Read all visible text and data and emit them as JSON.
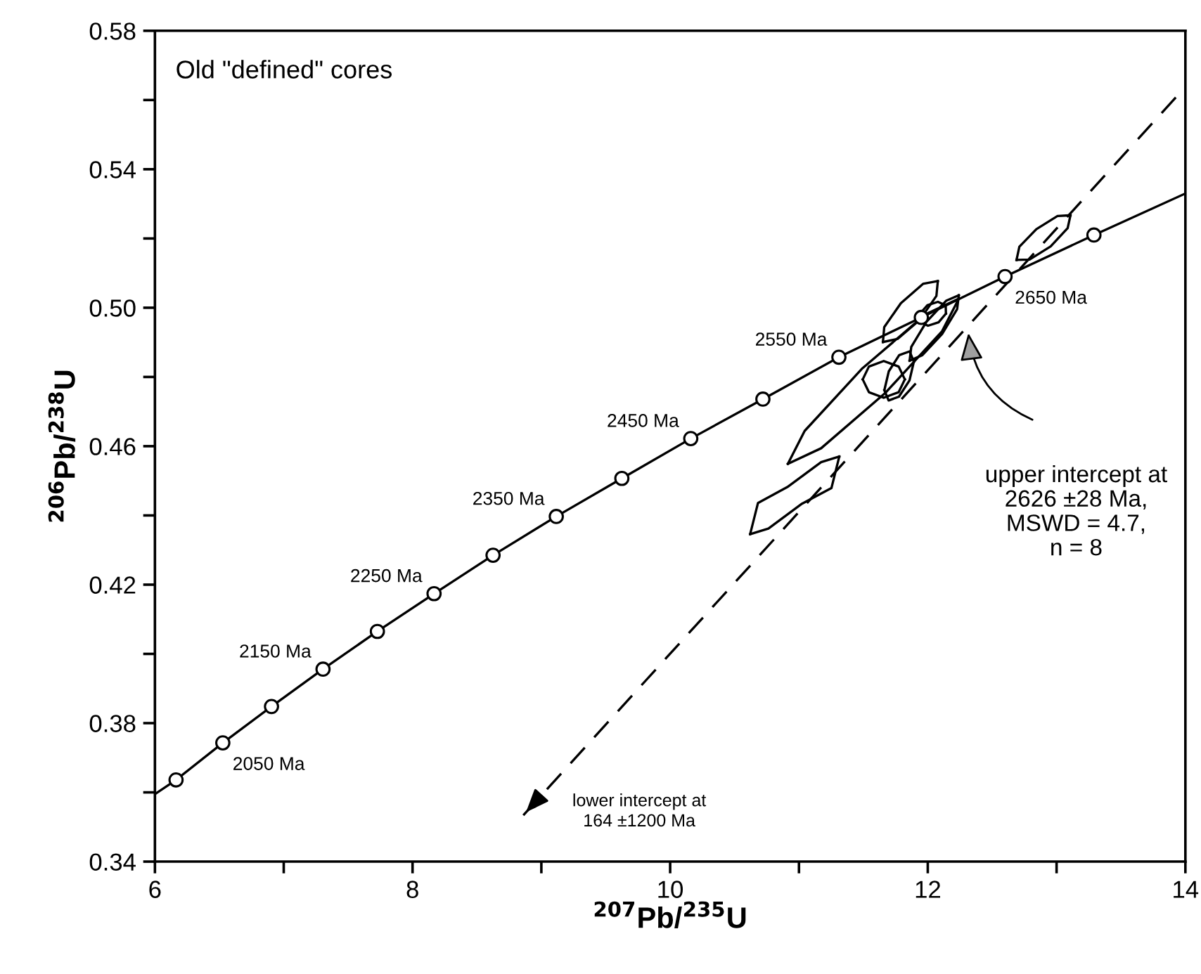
{
  "chart_data": {
    "type": "line",
    "title": "Old \"defined\" cores",
    "xlabel": "$^{207}$Pb/$^{235}$U",
    "ylabel": "$^{206}$Pb/$^{238}$U",
    "xlim": [
      6,
      14
    ],
    "ylim": [
      0.34,
      0.58
    ],
    "xticks": [
      6,
      {
        "value": 7,
        "label": null
      },
      8,
      {
        "value": 9,
        "label": null
      },
      10,
      {
        "value": 11,
        "label": null
      },
      12,
      {
        "value": 13,
        "label": null
      },
      14
    ],
    "yticks": [
      0.34,
      {
        "value": 0.36,
        "label": null
      },
      0.38,
      {
        "value": 0.4,
        "label": null
      },
      0.42,
      {
        "value": 0.44,
        "label": null
      },
      0.46,
      {
        "value": 0.48,
        "label": null
      },
      {
        "value": 0.5,
        "label": "0.50"
      },
      {
        "value": 0.52,
        "label": null
      },
      0.54,
      {
        "value": 0.56,
        "label": null
      },
      0.58
    ],
    "grid": false,
    "series": [
      {
        "color": "#000000",
        "line_style": "solid",
        "x": [
          6,
          6.164,
          6.527,
          6.905,
          7.305,
          7.727,
          8.167,
          8.625,
          9.116,
          9.625,
          10.16,
          10.72,
          11.31,
          11.95,
          12.6,
          13.29,
          14
        ],
        "values": [
          0.3595,
          0.3636,
          0.3743,
          0.3848,
          0.3956,
          0.4065,
          0.4174,
          0.4285,
          0.4397,
          0.4507,
          0.4622,
          0.4736,
          0.4857,
          0.4972,
          0.509,
          0.521,
          0.533
        ]
      },
      {
        "type": "scatter",
        "color": "#000000",
        "marker": "circle",
        "x": [
          6.164,
          6.527,
          6.905,
          7.305,
          7.727,
          8.167,
          8.625,
          9.116,
          9.625,
          10.16,
          10.72,
          11.31,
          11.95,
          12.6,
          13.29
        ],
        "values": [
          0.3636,
          0.3743,
          0.3848,
          0.3956,
          0.4065,
          0.4174,
          0.4285,
          0.4397,
          0.4507,
          0.4622,
          0.4736,
          0.4857,
          0.4972,
          0.509,
          0.521
        ]
      },
      {
        "color": "#000000",
        "line_style": "dashed",
        "x": [
          8.86,
          14
        ],
        "values": [
          0.3534,
          0.5638
        ]
      },
      {
        "color": "#000000",
        "line_style": "solid",
        "x": [
          12.689,
          12.711,
          12.843,
          13.007,
          13.108
        ],
        "values": [
          0.5138,
          0.5176,
          0.5227,
          0.5265,
          0.5267
        ]
      },
      {
        "color": "#000000",
        "line_style": "solid",
        "x": [
          12.689,
          12.79,
          12.954,
          13.086,
          13.108
        ],
        "values": [
          0.5138,
          0.5139,
          0.5177,
          0.523,
          0.5267
        ]
      },
      {
        "color": "#000000",
        "line_style": "solid",
        "x": [
          10.914,
          11.044,
          11.487,
          11.983,
          12.241
        ],
        "values": [
          0.4549,
          0.4644,
          0.4823,
          0.4981,
          0.5026
        ]
      },
      {
        "color": "#000000",
        "line_style": "solid",
        "x": [
          10.914,
          11.172,
          11.668,
          12.111,
          12.241
        ],
        "values": [
          0.4549,
          0.4594,
          0.4753,
          0.4932,
          0.5026
        ]
      },
      {
        "color": "#000000",
        "line_style": "solid",
        "x": [
          10.621,
          10.682,
          10.91,
          11.172,
          11.313
        ],
        "values": [
          0.4346,
          0.4436,
          0.4482,
          0.4554,
          0.457
        ]
      },
      {
        "color": "#000000",
        "line_style": "solid",
        "x": [
          10.621,
          10.763,
          11.024,
          11.252,
          11.313
        ],
        "values": [
          0.4346,
          0.4362,
          0.4434,
          0.4479,
          0.457
        ]
      },
      {
        "color": "#000000",
        "line_style": "solid",
        "x": [
          11.652,
          11.662,
          11.791,
          11.963,
          12.078
        ],
        "values": [
          0.4901,
          0.4944,
          0.5013,
          0.5069,
          0.5077
        ]
      },
      {
        "color": "#000000",
        "line_style": "solid",
        "x": [
          11.652,
          11.766,
          11.938,
          12.067,
          12.078
        ],
        "values": [
          0.4901,
          0.491,
          0.4965,
          0.5034,
          0.5077
        ]
      },
      {
        "color": "#000000",
        "line_style": "solid",
        "x": [
          11.495,
          11.543,
          11.658,
          11.774,
          11.822
        ],
        "values": [
          0.4793,
          0.483,
          0.4846,
          0.483,
          0.4793
        ]
      },
      {
        "color": "#000000",
        "line_style": "solid",
        "x": [
          11.495,
          11.543,
          11.658,
          11.774,
          11.822
        ],
        "values": [
          0.4793,
          0.4756,
          0.474,
          0.4756,
          0.4793
        ]
      },
      {
        "color": "#000000",
        "line_style": "solid",
        "x": [
          11.663,
          11.697,
          11.778,
          11.859,
          11.892
        ],
        "values": [
          0.4762,
          0.4816,
          0.4863,
          0.4874,
          0.4844
        ]
      },
      {
        "color": "#000000",
        "line_style": "solid",
        "x": [
          11.663,
          11.696,
          11.776,
          11.858,
          11.892
        ],
        "values": [
          0.4762,
          0.4732,
          0.4743,
          0.479,
          0.4844
        ]
      },
      {
        "color": "#000000",
        "line_style": "solid",
        "x": [
          11.859,
          11.872,
          11.989,
          12.142,
          12.241
        ],
        "values": [
          0.4847,
          0.4887,
          0.4959,
          0.502,
          0.5036
        ]
      },
      {
        "color": "#000000",
        "line_style": "solid",
        "x": [
          11.859,
          11.958,
          12.111,
          12.228,
          12.241
        ],
        "values": [
          0.4847,
          0.4863,
          0.4924,
          0.4996,
          0.5036
        ]
      },
      {
        "color": "#000000",
        "line_style": "solid",
        "x": [
          11.94,
          11.997,
          12.079,
          12.139,
          12.141
        ],
        "values": [
          0.4983,
          0.5007,
          0.5017,
          0.5007,
          0.4983
        ]
      },
      {
        "color": "#000000",
        "line_style": "solid",
        "x": [
          11.94,
          11.942,
          12.002,
          12.084,
          12.141
        ],
        "values": [
          0.4983,
          0.4958,
          0.4948,
          0.4958,
          0.4983
        ]
      }
    ],
    "annotations": [
      {
        "text": "2050 Ma",
        "x": 6.527,
        "y": 0.3743
      },
      {
        "text": "2150 Ma",
        "x": 7.305,
        "y": 0.3956
      },
      {
        "text": "2250 Ma",
        "x": 8.167,
        "y": 0.4174
      },
      {
        "text": "2350 Ma",
        "x": 9.116,
        "y": 0.4397
      },
      {
        "text": "2450 Ma",
        "x": 10.16,
        "y": 0.4622
      },
      {
        "text": "2550 Ma",
        "x": 11.31,
        "y": 0.4857
      },
      {
        "text": "2650 Ma",
        "x": 12.6,
        "y": 0.509
      },
      "upper intercept at\n2626 ±28 Ma,\nMSWD = 4.7,\nn = 8",
      "lower intercept at\n164 ±1200 Ma"
    ]
  }
}
